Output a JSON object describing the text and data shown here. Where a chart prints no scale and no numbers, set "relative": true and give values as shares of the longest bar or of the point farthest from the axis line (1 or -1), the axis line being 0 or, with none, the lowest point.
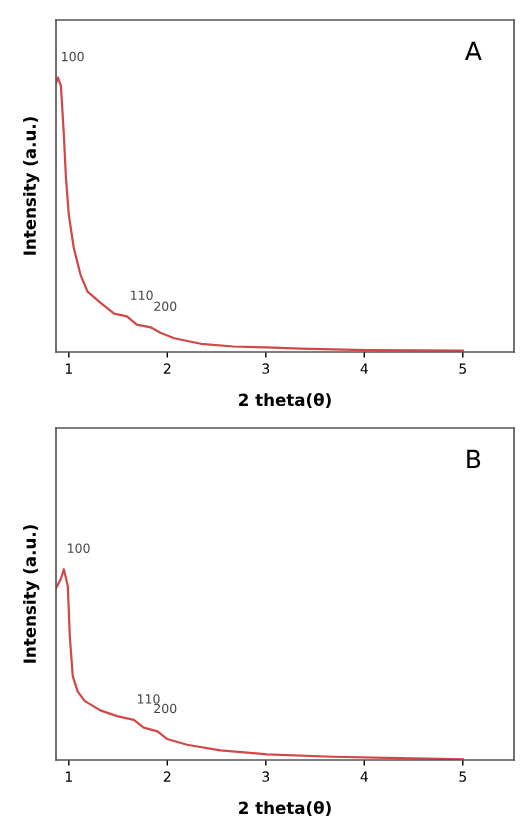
{
  "chart_data": [
    {
      "type": "line",
      "title": "A",
      "xlabel": "2 theta(θ)",
      "ylabel": "Intensity (a.u.)",
      "relative": true,
      "xlim": [
        0.87,
        5.52
      ],
      "xticks": [
        1,
        2,
        3,
        4,
        5
      ],
      "tick_labels": "x",
      "grid": false,
      "legend": false,
      "x": [
        0.87,
        0.89,
        0.92,
        0.95,
        0.97,
        1.0,
        1.05,
        1.12,
        1.19,
        1.32,
        1.46,
        1.59,
        1.69,
        1.83,
        1.93,
        2.07,
        2.34,
        2.67,
        3.01,
        3.35,
        4.02,
        5.0
      ],
      "series": [
        {
          "color": "#d04848",
          "values": [
            0.98,
            1.0,
            0.97,
            0.79,
            0.64,
            0.5,
            0.38,
            0.28,
            0.22,
            0.18,
            0.14,
            0.13,
            0.1,
            0.09,
            0.07,
            0.05,
            0.03,
            0.02,
            0.017,
            0.012,
            0.007,
            0.005
          ]
        }
      ],
      "annotations": [
        {
          "text": "100",
          "x": 0.89,
          "y": 1.0
        },
        {
          "text": "110",
          "x": 1.59,
          "y": 0.13
        },
        {
          "text": "200",
          "x": 1.83,
          "y": 0.09
        }
      ]
    },
    {
      "type": "line",
      "title": "B",
      "xlabel": "2 theta(θ)",
      "ylabel": "Intensity (a.u.)",
      "relative": true,
      "xlim": [
        0.87,
        5.52
      ],
      "xticks": [
        1,
        2,
        3,
        4,
        5
      ],
      "tick_labels": "x",
      "grid": false,
      "legend": false,
      "x": [
        0.87,
        0.92,
        0.95,
        0.99,
        1.01,
        1.04,
        1.09,
        1.16,
        1.32,
        1.49,
        1.66,
        1.76,
        1.9,
        2.0,
        2.2,
        2.54,
        3.01,
        3.68,
        4.36,
        5.0
      ],
      "series": [
        {
          "color": "#d04848",
          "values": [
            0.9,
            0.95,
            1.0,
            0.91,
            0.65,
            0.44,
            0.36,
            0.31,
            0.26,
            0.23,
            0.21,
            0.17,
            0.15,
            0.11,
            0.08,
            0.05,
            0.03,
            0.017,
            0.01,
            0.003
          ]
        }
      ],
      "annotations": [
        {
          "text": "100",
          "x": 0.95,
          "y": 1.0
        },
        {
          "text": "110",
          "x": 1.66,
          "y": 0.21
        },
        {
          "text": "200",
          "x": 1.83,
          "y": 0.16
        }
      ]
    }
  ]
}
